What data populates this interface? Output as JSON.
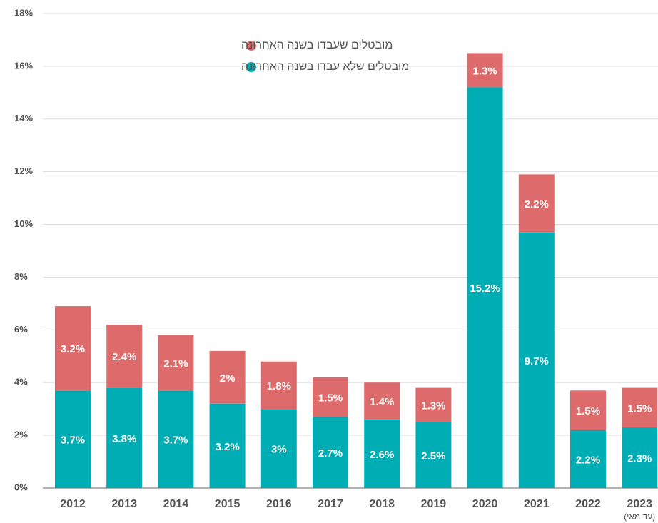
{
  "chart_data": {
    "type": "stacked_bar",
    "categories": [
      "2012",
      "2013",
      "2014",
      "2015",
      "2016",
      "2017",
      "2018",
      "2019",
      "2020",
      "2021",
      "2022",
      "2023"
    ],
    "annotation": "(עד מאי)",
    "series": [
      {
        "name": "מובטלים שלא עבדו בשנה האחרונה",
        "color": "#00adb5",
        "values": [
          3.7,
          3.8,
          3.7,
          3.2,
          3,
          2.7,
          2.6,
          2.5,
          15.2,
          9.7,
          2.2,
          2.3
        ],
        "value_labels": [
          "3.7%",
          "3.8%",
          "3.7%",
          "3.2%",
          "3%",
          "2.7%",
          "2.6%",
          "2.5%",
          "15.2%",
          "9.7%",
          "2.2%",
          "2.3%"
        ]
      },
      {
        "name": "מובטלים שעבדו בשנה האחרונה",
        "color": "#dd6b6b",
        "values": [
          3.2,
          2.4,
          2.1,
          2,
          1.8,
          1.5,
          1.4,
          1.3,
          1.3,
          2.2,
          1.5,
          1.5
        ],
        "value_labels": [
          "3.2%",
          "2.4%",
          "2.1%",
          "2%",
          "1.8%",
          "1.5%",
          "1.4%",
          "1.3%",
          "1.3%",
          "2.2%",
          "1.5%",
          "1.5%"
        ]
      }
    ],
    "ylim": [
      0,
      18
    ],
    "yticks": [
      {
        "value": 0,
        "label": "0%"
      },
      {
        "value": 2,
        "label": "2%"
      },
      {
        "value": 4,
        "label": "4%"
      },
      {
        "value": 6,
        "label": "6%"
      },
      {
        "value": 8,
        "label": "8%"
      },
      {
        "value": 10,
        "label": "10%"
      },
      {
        "value": 12,
        "label": "12%"
      },
      {
        "value": 14,
        "label": "14%"
      },
      {
        "value": 16,
        "label": "16%"
      },
      {
        "value": 18,
        "label": "18%"
      }
    ],
    "grid": true
  }
}
